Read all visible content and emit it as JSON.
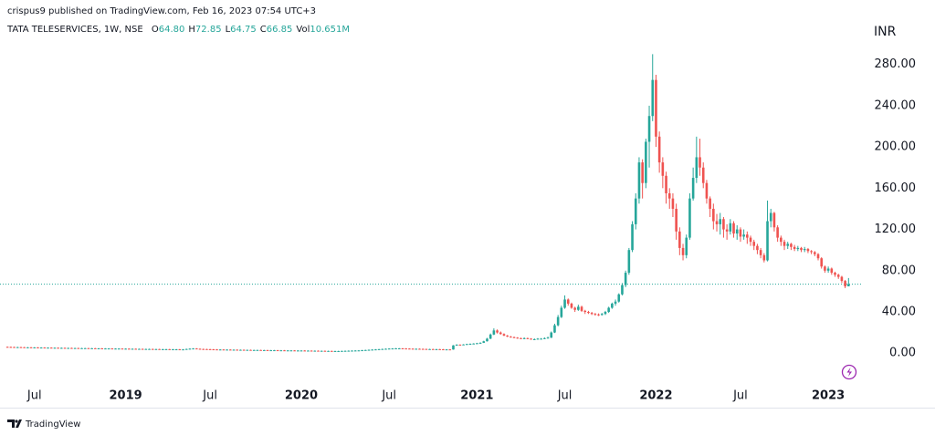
{
  "header": {
    "attribution": "crispus9 published on TradingView.com, Feb 16, 2023 07:54 UTC+3"
  },
  "footer": {
    "brand": "TradingView"
  },
  "chart_data": {
    "type": "candlestick",
    "symbol": "TATA TELESERVICES, 1W, NSE",
    "ohlc_legend": [
      {
        "label": "O",
        "value": "64.80"
      },
      {
        "label": "H",
        "value": "72.85"
      },
      {
        "label": "L",
        "value": "64.75"
      },
      {
        "label": "C",
        "value": "66.85"
      },
      {
        "label": "Vol",
        "value": "10.651M"
      }
    ],
    "y_axis_label": "INR",
    "up_color": "#26a69a",
    "down_color": "#ef5350",
    "grid": false,
    "xlim": [
      -2.2,
      252.7
    ],
    "ylim": [
      -29,
      316
    ],
    "yticks": [
      {
        "value": 0,
        "label": "0.00"
      },
      {
        "value": 40,
        "label": "40.00"
      },
      {
        "value": 80,
        "label": "80.00"
      },
      {
        "value": 120,
        "label": "120.00"
      },
      {
        "value": 160,
        "label": "160.00"
      },
      {
        "value": 200,
        "label": "200.00"
      },
      {
        "value": 240,
        "label": "240.00"
      },
      {
        "value": 280,
        "label": "280.00"
      }
    ],
    "xticks": [
      {
        "value": 8,
        "label": "Jul"
      },
      {
        "value": 35,
        "label": "2019"
      },
      {
        "value": 60,
        "label": "Jul"
      },
      {
        "value": 87,
        "label": "2020"
      },
      {
        "value": 113,
        "label": "Jul"
      },
      {
        "value": 139,
        "label": "2021"
      },
      {
        "value": 165,
        "label": "Jul"
      },
      {
        "value": 192,
        "label": "2022"
      },
      {
        "value": 217,
        "label": "Jul"
      },
      {
        "value": 243,
        "label": "2023"
      }
    ],
    "year_ticks": [
      1,
      3,
      5,
      7,
      9
    ],
    "open": [
      6.1,
      6.0,
      5.9,
      5.8,
      5.8,
      5.7,
      5.6,
      5.6,
      5.5,
      5.5,
      5.4,
      5.4,
      5.3,
      5.3,
      5.2,
      5.2,
      5.1,
      5.1,
      5.0,
      5.0,
      4.9,
      4.9,
      4.8,
      4.8,
      4.8,
      4.7,
      4.7,
      4.6,
      4.6,
      4.5,
      4.5,
      4.5,
      4.4,
      4.4,
      4.4,
      4.3,
      4.3,
      4.2,
      4.2,
      4.1,
      4.1,
      4.0,
      4.0,
      4.0,
      3.9,
      3.9,
      3.8,
      3.8,
      3.8,
      3.7,
      3.7,
      3.7,
      3.6,
      3.6,
      4.0,
      4.3,
      4.5,
      4.2,
      4.0,
      3.9,
      3.8,
      3.7,
      3.6,
      3.5,
      3.5,
      3.4,
      3.4,
      3.3,
      3.3,
      3.2,
      3.2,
      3.1,
      3.1,
      3.0,
      3.0,
      3.0,
      2.9,
      2.9,
      2.8,
      2.8,
      2.8,
      2.7,
      2.7,
      2.6,
      2.6,
      2.6,
      2.5,
      2.5,
      2.5,
      2.4,
      2.4,
      2.3,
      2.3,
      2.2,
      2.2,
      2.1,
      2.1,
      2.0,
      2.0,
      2.0,
      2.1,
      2.2,
      2.3,
      2.4,
      2.5,
      2.6,
      2.8,
      3.0,
      3.2,
      3.4,
      3.6,
      3.8,
      4.0,
      4.2,
      4.4,
      4.5,
      4.6,
      4.6,
      4.5,
      4.4,
      4.3,
      4.2,
      4.2,
      4.1,
      4.0,
      3.9,
      3.9,
      3.8,
      3.8,
      3.7,
      3.6,
      3.6,
      3.5,
      7.5,
      8.2,
      8.0,
      8.4,
      8.8,
      9.0,
      9.3,
      9.6,
      10.0,
      11.5,
      14.0,
      18.0,
      22.0,
      20.0,
      18.5,
      17.0,
      16.0,
      15.5,
      15.0,
      14.5,
      14.0,
      14.5,
      14.0,
      13.5,
      13.5,
      14.0,
      14.0,
      14.5,
      15.0,
      20.0,
      27.0,
      35.0,
      44.0,
      52.0,
      48.0,
      44.0,
      42.0,
      45.0,
      41.0,
      40.0,
      39.0,
      38.0,
      37.5,
      37.0,
      38.0,
      40.0,
      44.0,
      48.0,
      50.0,
      57.0,
      66.0,
      78.0,
      100.0,
      125.0,
      150.0,
      185.0,
      165.0,
      205.0,
      230.0,
      265.0,
      210.0,
      185.0,
      172.0,
      155.0,
      150.0,
      140.0,
      118.0,
      102.0,
      95.0,
      112.0,
      150.0,
      170.0,
      190.0,
      180.0,
      165.0,
      150.0,
      140.0,
      128.0,
      125.0,
      130.0,
      120.0,
      118.0,
      126.0,
      116.0,
      120.0,
      113.0,
      115.0,
      112.0,
      108.0,
      104.0,
      100.0,
      95.0,
      90.0,
      128.0,
      136.0,
      122.0,
      112.0,
      108.0,
      104.0,
      106.0,
      103.0,
      101.0,
      102.0,
      100.0,
      101.0,
      99.0,
      98.0,
      96.0,
      92.0,
      84.0,
      80.0,
      82.0,
      78.0,
      76.0,
      74.0,
      70.0,
      64.8
    ],
    "high": [
      6.4,
      6.3,
      6.2,
      6.1,
      6.1,
      6.0,
      5.9,
      5.9,
      5.8,
      5.8,
      5.7,
      5.7,
      5.6,
      5.6,
      5.5,
      5.5,
      5.4,
      5.4,
      5.3,
      5.3,
      5.2,
      5.2,
      5.1,
      5.1,
      5.1,
      5.0,
      5.0,
      4.9,
      4.9,
      4.8,
      4.8,
      4.8,
      4.7,
      4.7,
      4.7,
      4.6,
      4.6,
      4.5,
      4.5,
      4.4,
      4.4,
      4.3,
      4.3,
      4.3,
      4.2,
      4.2,
      4.1,
      4.1,
      4.1,
      4.0,
      4.0,
      4.0,
      3.9,
      4.3,
      4.6,
      4.8,
      4.8,
      4.5,
      4.3,
      4.2,
      4.1,
      4.0,
      3.9,
      3.8,
      3.8,
      3.7,
      3.7,
      3.6,
      3.6,
      3.5,
      3.5,
      3.4,
      3.4,
      3.3,
      3.3,
      3.3,
      3.2,
      3.2,
      3.1,
      3.1,
      3.1,
      3.0,
      3.0,
      2.9,
      2.9,
      2.9,
      2.8,
      2.8,
      2.8,
      2.7,
      2.7,
      2.6,
      2.6,
      2.5,
      2.5,
      2.4,
      2.4,
      2.3,
      2.3,
      2.4,
      2.5,
      2.6,
      2.7,
      2.8,
      2.9,
      3.1,
      3.3,
      3.5,
      3.7,
      3.9,
      4.1,
      4.3,
      4.5,
      4.7,
      4.8,
      4.9,
      4.9,
      4.9,
      4.8,
      4.7,
      4.6,
      4.5,
      4.5,
      4.4,
      4.3,
      4.2,
      4.2,
      4.1,
      4.1,
      4.0,
      3.9,
      3.9,
      7.8,
      8.6,
      8.5,
      8.7,
      9.1,
      9.4,
      9.6,
      10.0,
      10.5,
      12.0,
      14.8,
      19.0,
      24.0,
      23.0,
      21.0,
      19.2,
      17.6,
      16.6,
      16.0,
      15.5,
      15.0,
      15.2,
      15.0,
      14.5,
      14.2,
      14.6,
      14.6,
      15.2,
      16.0,
      21.0,
      28.5,
      37.0,
      46.0,
      56.0,
      53.0,
      49.0,
      45.0,
      47.0,
      46.0,
      42.0,
      41.0,
      40.0,
      39.0,
      38.5,
      39.0,
      41.0,
      45.0,
      49.0,
      52.0,
      58.0,
      68.0,
      80.0,
      102.0,
      128.0,
      155.0,
      190.0,
      188.0,
      208.0,
      240.0,
      290.0,
      270,
      215,
      190,
      176,
      160,
      155,
      145,
      122,
      106,
      115,
      155,
      180,
      210,
      208,
      185,
      168,
      152,
      145,
      135,
      136,
      132,
      125,
      130,
      128,
      124,
      122,
      120,
      118,
      114,
      110,
      106,
      102,
      97,
      148,
      140,
      137,
      124,
      114,
      110,
      108,
      107,
      105,
      104,
      103,
      103,
      102,
      100,
      99,
      97,
      93,
      85,
      84,
      83,
      79,
      77,
      75,
      71,
      72.85
    ],
    "low": [
      5.7,
      5.6,
      5.5,
      5.5,
      5.4,
      5.3,
      5.3,
      5.2,
      5.2,
      5.1,
      5.1,
      5.0,
      5.0,
      4.9,
      4.9,
      4.8,
      4.8,
      4.7,
      4.7,
      4.6,
      4.6,
      4.5,
      4.5,
      4.5,
      4.4,
      4.4,
      4.3,
      4.3,
      4.2,
      4.2,
      4.2,
      4.1,
      4.1,
      4.1,
      4.0,
      4.0,
      3.9,
      3.9,
      3.8,
      3.8,
      3.7,
      3.7,
      3.7,
      3.6,
      3.6,
      3.5,
      3.5,
      3.5,
      3.4,
      3.4,
      3.4,
      3.3,
      3.3,
      3.3,
      3.7,
      4.0,
      3.9,
      3.7,
      3.6,
      3.5,
      3.4,
      3.3,
      3.2,
      3.2,
      3.1,
      3.1,
      3.0,
      3.0,
      2.9,
      2.9,
      2.8,
      2.8,
      2.7,
      2.7,
      2.7,
      2.6,
      2.6,
      2.5,
      2.5,
      2.5,
      2.4,
      2.4,
      2.3,
      2.3,
      2.3,
      2.2,
      2.2,
      2.2,
      2.1,
      2.1,
      2.0,
      2.0,
      1.9,
      1.9,
      1.8,
      1.8,
      1.7,
      1.7,
      1.7,
      1.7,
      1.8,
      1.9,
      2.0,
      2.1,
      2.2,
      2.3,
      2.5,
      2.7,
      2.9,
      3.1,
      3.3,
      3.5,
      3.7,
      3.9,
      4.1,
      4.2,
      4.3,
      4.2,
      4.1,
      4.0,
      3.9,
      3.9,
      3.8,
      3.7,
      3.6,
      3.6,
      3.5,
      3.5,
      3.4,
      3.3,
      3.3,
      3.2,
      3.3,
      7.2,
      7.7,
      7.8,
      8.1,
      8.5,
      8.8,
      9.0,
      9.3,
      9.8,
      11.2,
      13.6,
      17.5,
      19.0,
      18.0,
      16.5,
      15.6,
      15.0,
      14.6,
      14.0,
      13.6,
      13.6,
      13.5,
      13.0,
      13.0,
      13.2,
      13.5,
      13.6,
      14.2,
      14.6,
      19.5,
      26.0,
      34.0,
      43.0,
      46.0,
      43.0,
      40.0,
      41.0,
      40.0,
      38.0,
      38.0,
      37.0,
      36.5,
      36.0,
      36.5,
      37.0,
      39.0,
      43.0,
      46.0,
      49.0,
      56.0,
      64.0,
      76.0,
      98.0,
      120.0,
      145.0,
      150.0,
      160.0,
      180.0,
      225.0,
      200,
      175,
      160,
      145,
      140,
      132,
      110,
      95,
      90,
      92,
      110,
      148,
      165,
      172,
      160,
      145,
      132,
      120,
      118,
      115,
      112,
      110,
      115,
      112,
      110,
      108,
      110,
      106,
      104,
      100,
      96,
      92,
      88,
      89,
      122,
      118,
      108,
      104,
      100,
      101,
      100,
      99,
      99,
      98,
      98,
      97,
      96,
      94,
      90,
      82,
      78,
      78,
      76,
      74,
      72,
      68,
      63,
      64.75
    ],
    "close": [
      6.0,
      5.9,
      5.8,
      5.8,
      5.7,
      5.6,
      5.6,
      5.5,
      5.5,
      5.4,
      5.4,
      5.3,
      5.3,
      5.2,
      5.2,
      5.1,
      5.1,
      5.0,
      5.0,
      4.9,
      4.9,
      4.8,
      4.8,
      4.8,
      4.7,
      4.7,
      4.6,
      4.6,
      4.5,
      4.5,
      4.5,
      4.4,
      4.4,
      4.4,
      4.3,
      4.3,
      4.2,
      4.2,
      4.1,
      4.1,
      4.0,
      4.0,
      4.0,
      3.9,
      3.9,
      3.8,
      3.8,
      3.8,
      3.7,
      3.7,
      3.7,
      3.6,
      3.6,
      4.0,
      4.3,
      4.5,
      4.2,
      4.0,
      3.9,
      3.8,
      3.7,
      3.6,
      3.5,
      3.5,
      3.4,
      3.4,
      3.3,
      3.3,
      3.2,
      3.2,
      3.1,
      3.1,
      3.0,
      3.0,
      3.0,
      2.9,
      2.9,
      2.8,
      2.8,
      2.8,
      2.7,
      2.7,
      2.6,
      2.6,
      2.6,
      2.5,
      2.5,
      2.5,
      2.4,
      2.4,
      2.3,
      2.3,
      2.2,
      2.2,
      2.1,
      2.1,
      2.0,
      2.0,
      2.0,
      2.1,
      2.2,
      2.3,
      2.4,
      2.5,
      2.6,
      2.8,
      3.0,
      3.2,
      3.4,
      3.6,
      3.8,
      4.0,
      4.2,
      4.4,
      4.5,
      4.6,
      4.6,
      4.5,
      4.4,
      4.3,
      4.2,
      4.2,
      4.1,
      4.0,
      3.9,
      3.9,
      3.8,
      3.8,
      3.7,
      3.6,
      3.6,
      3.5,
      7.5,
      8.2,
      8.0,
      8.4,
      8.8,
      9.0,
      9.3,
      9.6,
      10.0,
      11.5,
      14.0,
      18.0,
      22.0,
      20.0,
      18.5,
      17.0,
      16.0,
      15.5,
      15.0,
      14.5,
      14.0,
      14.5,
      14.0,
      13.5,
      13.5,
      14.0,
      14.0,
      14.5,
      15.0,
      20.0,
      27.0,
      35.0,
      44.0,
      52.0,
      48.0,
      44.0,
      42.0,
      45.0,
      41.0,
      40.0,
      39.0,
      38.0,
      37.5,
      37.0,
      38.0,
      40.0,
      44.0,
      48.0,
      50.0,
      57.0,
      66.0,
      78.0,
      100.0,
      125.0,
      150.0,
      185.0,
      165.0,
      205.0,
      230.0,
      265.0,
      210.0,
      185.0,
      172.0,
      155.0,
      150.0,
      140.0,
      118.0,
      102.0,
      95.0,
      112.0,
      150.0,
      170.0,
      190.0,
      180.0,
      165.0,
      150.0,
      140.0,
      128.0,
      125.0,
      130.0,
      120.0,
      118.0,
      126.0,
      116.0,
      120.0,
      113.0,
      115.0,
      112.0,
      108.0,
      104.0,
      100.0,
      95.0,
      90.0,
      128.0,
      136.0,
      122.0,
      112.0,
      108.0,
      104.0,
      106.0,
      103.0,
      101.0,
      102.0,
      100.0,
      101.0,
      99.0,
      98.0,
      96.0,
      92.0,
      84.0,
      80.0,
      82.0,
      78.0,
      76.0,
      74.0,
      70.0,
      64.8,
      66.85
    ]
  }
}
